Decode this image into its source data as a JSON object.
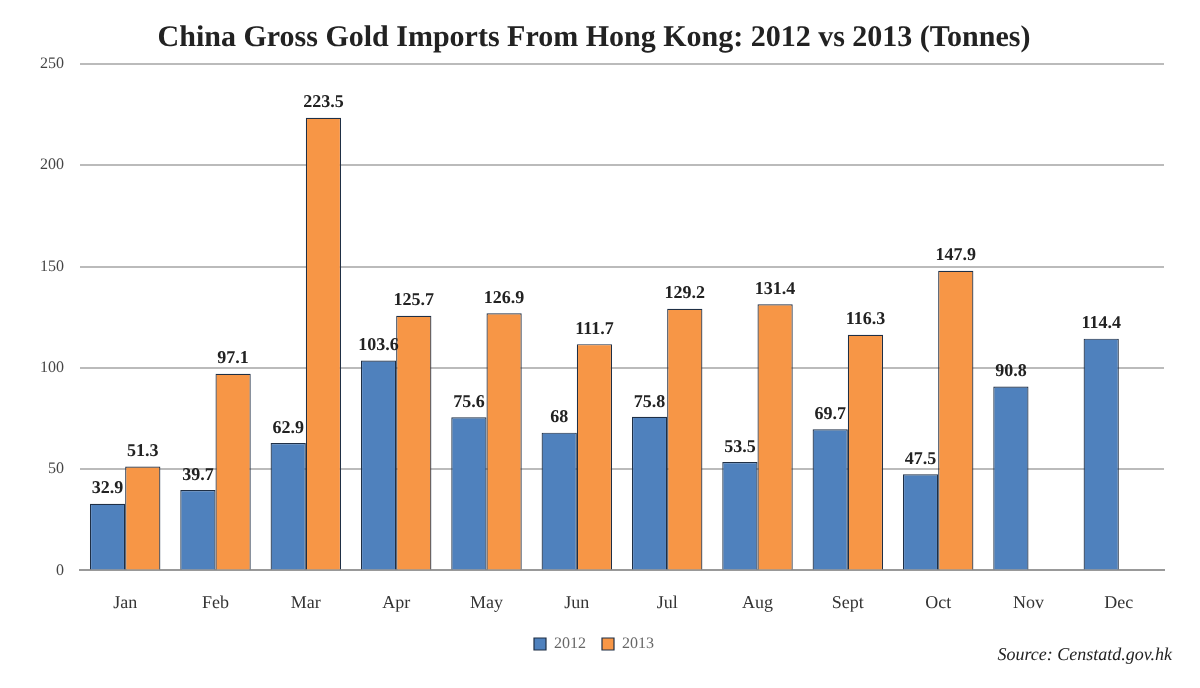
{
  "chart_data": {
    "type": "bar",
    "title": "China Gross Gold Imports From Hong Kong: 2012 vs 2013 (Tonnes)",
    "categories": [
      "Jan",
      "Feb",
      "Mar",
      "Apr",
      "May",
      "Jun",
      "Jul",
      "Aug",
      "Sept",
      "Oct",
      "Nov",
      "Dec"
    ],
    "series": [
      {
        "name": "2012",
        "color": "#4f81bd",
        "values": [
          32.9,
          39.7,
          62.9,
          103.6,
          75.6,
          68,
          75.8,
          53.5,
          69.7,
          47.5,
          90.8,
          114.4
        ]
      },
      {
        "name": "2013",
        "color": "#f79646",
        "values": [
          51.3,
          97.1,
          223.5,
          125.7,
          126.9,
          111.7,
          129.2,
          131.4,
          116.3,
          147.9,
          null,
          null
        ]
      }
    ],
    "ylim": [
      0,
      250
    ],
    "yticks": [
      0,
      50,
      100,
      150,
      200,
      250
    ],
    "grid": "y",
    "legend": "bottom",
    "data_labels": true,
    "annotations": [
      "Source: Censtatd.gov.hk"
    ]
  }
}
